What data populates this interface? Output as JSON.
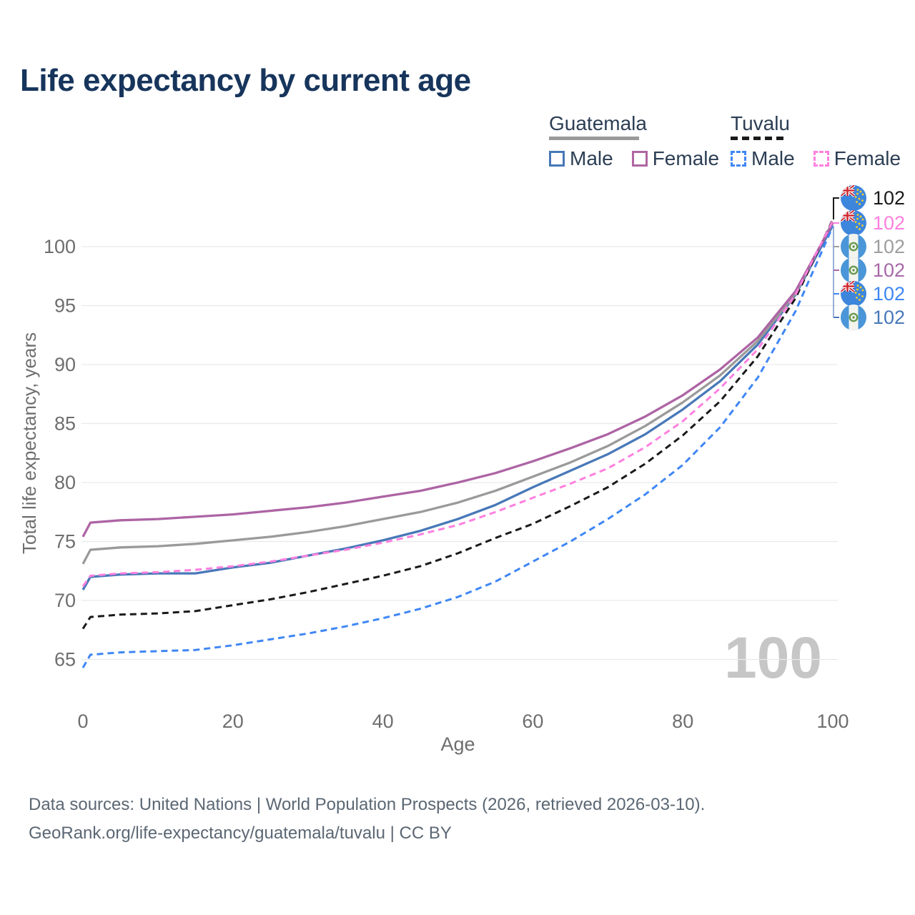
{
  "title": "Life expectancy by current age",
  "legend": {
    "groups": [
      {
        "label": "Guatemala",
        "line_style": "solid",
        "line_color": "#9a9a9a",
        "items": [
          {
            "label": "Male",
            "color": "#4878b8",
            "dashed": false
          },
          {
            "label": "Female",
            "color": "#b066a2",
            "dashed": false
          }
        ]
      },
      {
        "label": "Tuvalu",
        "line_style": "dashed",
        "line_color": "#1a1a1a",
        "items": [
          {
            "label": "Male",
            "color": "#3f87f5",
            "dashed": true
          },
          {
            "label": "Female",
            "color": "#ff80df",
            "dashed": true
          }
        ]
      }
    ]
  },
  "chart_data": {
    "type": "line",
    "title": "Life expectancy by current age",
    "xlabel": "Age",
    "ylabel": "Total life expectancy, years",
    "x_ticks": [
      0,
      20,
      40,
      60,
      80,
      100
    ],
    "y_ticks": [
      65,
      70,
      75,
      80,
      85,
      90,
      95,
      100
    ],
    "xlim": [
      0,
      100
    ],
    "ylim": [
      63.5,
      103
    ],
    "grid": "horizontal-only",
    "legend_position": "top-right",
    "watermark": "100",
    "x": [
      0,
      1,
      5,
      10,
      15,
      20,
      25,
      30,
      35,
      40,
      45,
      50,
      55,
      60,
      65,
      70,
      75,
      80,
      85,
      90,
      95,
      100
    ],
    "series": [
      {
        "name": "Guatemala Male",
        "country": "Guatemala",
        "sex": "Male",
        "color": "#4878b8",
        "dashed": false,
        "values": [
          70.9,
          72.0,
          72.2,
          72.3,
          72.3,
          72.8,
          73.2,
          73.8,
          74.4,
          75.1,
          75.9,
          76.9,
          78.1,
          79.6,
          81.0,
          82.4,
          84.1,
          86.2,
          88.6,
          91.7,
          95.9,
          101.8
        ]
      },
      {
        "name": "Guatemala Both sexes",
        "country": "Guatemala",
        "sex": "Both",
        "color": "#9a9a9a",
        "dashed": false,
        "values": [
          73.1,
          74.3,
          74.5,
          74.6,
          74.8,
          75.1,
          75.4,
          75.8,
          76.3,
          76.9,
          77.5,
          78.3,
          79.3,
          80.5,
          81.7,
          83.1,
          84.8,
          86.8,
          89.1,
          92.0,
          96.0,
          102.1
        ]
      },
      {
        "name": "Guatemala Female",
        "country": "Guatemala",
        "sex": "Female",
        "color": "#ad64a4",
        "dashed": false,
        "values": [
          75.4,
          76.6,
          76.8,
          76.9,
          77.1,
          77.3,
          77.6,
          77.9,
          78.3,
          78.8,
          79.3,
          80.0,
          80.8,
          81.8,
          82.9,
          84.1,
          85.6,
          87.4,
          89.6,
          92.3,
          96.2,
          102.0
        ]
      },
      {
        "name": "Tuvalu Both sexes",
        "country": "Tuvalu",
        "sex": "Both",
        "color": "#1a1a1a",
        "dashed": true,
        "values": [
          67.6,
          68.6,
          68.8,
          68.9,
          69.1,
          69.6,
          70.1,
          70.7,
          71.4,
          72.1,
          72.9,
          74.0,
          75.3,
          76.5,
          78.0,
          79.6,
          81.6,
          84.0,
          86.9,
          90.7,
          95.6,
          102.3
        ]
      },
      {
        "name": "Tuvalu Male",
        "country": "Tuvalu",
        "sex": "Male",
        "color": "#3f87f5",
        "dashed": true,
        "values": [
          64.3,
          65.4,
          65.6,
          65.7,
          65.8,
          66.2,
          66.7,
          67.2,
          67.8,
          68.5,
          69.3,
          70.3,
          71.6,
          73.3,
          75.0,
          76.9,
          79.0,
          81.5,
          84.7,
          88.9,
          94.5,
          101.7
        ]
      },
      {
        "name": "Tuvalu Female",
        "country": "Tuvalu",
        "sex": "Female",
        "color": "#ff80df",
        "dashed": true,
        "values": [
          71.2,
          72.1,
          72.3,
          72.4,
          72.6,
          72.9,
          73.3,
          73.8,
          74.3,
          74.9,
          75.6,
          76.4,
          77.5,
          78.7,
          79.9,
          81.2,
          83.0,
          85.2,
          88.0,
          91.3,
          95.9,
          102.2
        ]
      }
    ],
    "end_labels": [
      {
        "flag": "tuvalu",
        "series": "Tuvalu Both sexes",
        "label": "102",
        "color": "#1a1a1a"
      },
      {
        "flag": "tuvalu",
        "series": "Tuvalu Female",
        "label": "102",
        "color": "#ff80df"
      },
      {
        "flag": "guatemala",
        "series": "Guatemala Both sexes",
        "label": "102",
        "color": "#9e9e9e"
      },
      {
        "flag": "guatemala",
        "series": "Guatemala Female",
        "label": "102",
        "color": "#a868a8"
      },
      {
        "flag": "tuvalu",
        "series": "Tuvalu Male",
        "label": "102",
        "color": "#3f87f5"
      },
      {
        "flag": "guatemala",
        "series": "Guatemala Male",
        "label": "102",
        "color": "#4878b8"
      }
    ]
  },
  "footer": {
    "line1": "Data sources: United Nations | World Population Prospects (2026, retrieved 2026-03-10).",
    "line2": "GeoRank.org/life-expectancy/guatemala/tuvalu | CC BY"
  }
}
